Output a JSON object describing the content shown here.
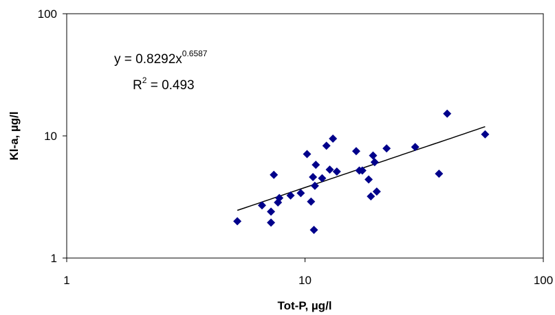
{
  "chart_data": {
    "type": "scatter",
    "title": "",
    "xlabel": "Tot-P, µg/l",
    "ylabel": "Kl-a, µg/l",
    "x_scale": "log",
    "y_scale": "log",
    "xlim": [
      1,
      100
    ],
    "ylim": [
      1,
      100
    ],
    "x_ticks": [
      "1",
      "10",
      "100"
    ],
    "y_ticks": [
      "1",
      "10",
      "100"
    ],
    "grid": false,
    "legend": "none",
    "marker_color": "#00008B",
    "series": [
      {
        "values": [
          {
            "x": 5.2,
            "y": 2.0
          },
          {
            "x": 6.6,
            "y": 2.7
          },
          {
            "x": 7.2,
            "y": 2.4
          },
          {
            "x": 7.2,
            "y": 1.95
          },
          {
            "x": 7.4,
            "y": 4.8
          },
          {
            "x": 7.7,
            "y": 2.85
          },
          {
            "x": 7.8,
            "y": 3.1
          },
          {
            "x": 8.7,
            "y": 3.25
          },
          {
            "x": 9.6,
            "y": 3.4
          },
          {
            "x": 10.2,
            "y": 7.1
          },
          {
            "x": 10.6,
            "y": 2.9
          },
          {
            "x": 10.8,
            "y": 4.6
          },
          {
            "x": 10.9,
            "y": 1.7
          },
          {
            "x": 11.1,
            "y": 5.8
          },
          {
            "x": 11.0,
            "y": 3.9
          },
          {
            "x": 11.8,
            "y": 4.5
          },
          {
            "x": 12.3,
            "y": 8.3
          },
          {
            "x": 12.7,
            "y": 5.3
          },
          {
            "x": 13.1,
            "y": 9.5
          },
          {
            "x": 13.6,
            "y": 5.1
          },
          {
            "x": 16.4,
            "y": 7.5
          },
          {
            "x": 16.9,
            "y": 5.2
          },
          {
            "x": 17.4,
            "y": 5.2
          },
          {
            "x": 18.5,
            "y": 4.4
          },
          {
            "x": 18.9,
            "y": 3.2
          },
          {
            "x": 19.3,
            "y": 6.9
          },
          {
            "x": 19.6,
            "y": 6.1
          },
          {
            "x": 20.0,
            "y": 3.5
          },
          {
            "x": 22.0,
            "y": 7.9
          },
          {
            "x": 29.0,
            "y": 8.1
          },
          {
            "x": 36.5,
            "y": 4.9
          },
          {
            "x": 39.5,
            "y": 15.2
          },
          {
            "x": 57.0,
            "y": 10.3
          }
        ]
      }
    ],
    "trendline": {
      "type": "power",
      "a": 0.8292,
      "b": 0.6587,
      "x_range": [
        5.2,
        57
      ],
      "color": "#000000"
    },
    "annotations": {
      "equation_prefix": "y = 0.8292x",
      "equation_exponent": "0.6587",
      "r2_prefix": "R",
      "r2_exponent": "2",
      "r2_suffix": " = 0.493"
    }
  }
}
